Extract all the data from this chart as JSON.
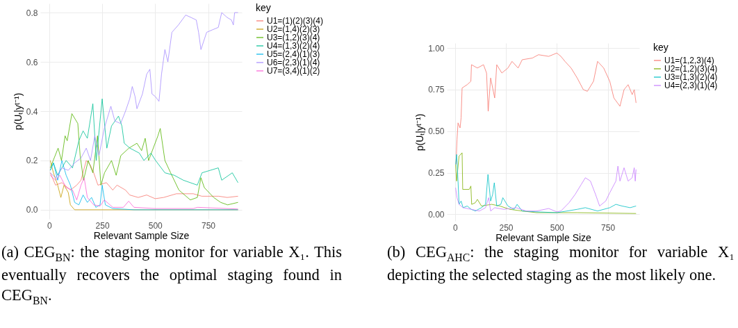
{
  "chart_data": [
    {
      "type": "line",
      "xlabel": "Relevant Sample Size",
      "ylabel": "p(Uₜ|yᵗ⁻¹)",
      "legend_title": "key",
      "legend": "right",
      "grid": true,
      "xlim": [
        -42,
        909
      ],
      "ylim": [
        -0.037,
        0.837
      ],
      "xticks": [
        0,
        250,
        500,
        750
      ],
      "yticks": [
        {
          "value": 0,
          "label": "0.0"
        },
        {
          "value": 0.2,
          "label": "0.2"
        },
        {
          "value": 0.4,
          "label": "0.4"
        },
        {
          "value": 0.6,
          "label": "0.6"
        },
        {
          "value": 0.8,
          "label": "0.8"
        }
      ],
      "annotations": [
        "(a) CEG$_{BN}$: the staging monitor for variable X₁. This eventually recovers the optimal staging found in CEG$_{BN}$."
      ],
      "series": [
        {
          "name": "U1=(1)(2)(3)(4)",
          "color": "#f8766d",
          "x": [
            5,
            30,
            60,
            100,
            130,
            150,
            175,
            195,
            210,
            230,
            270,
            300,
            320,
            360,
            380,
            420,
            460,
            500,
            540,
            600,
            680,
            720,
            800,
            840,
            891
          ],
          "values": [
            0.15,
            0.1,
            0.11,
            0.08,
            0.1,
            0.12,
            0.2,
            0.18,
            0.15,
            0.1,
            0.11,
            0.08,
            0.1,
            0.08,
            0.06,
            0.05,
            0.06,
            0.045,
            0.05,
            0.065,
            0.065,
            0.055,
            0.055,
            0.05,
            0.055
          ]
        },
        {
          "name": "U2=(1,4)(2)(3)",
          "color": "#c49a00",
          "x": [
            5,
            20,
            40,
            55,
            70,
            90,
            100,
            120,
            891
          ],
          "values": [
            0.2,
            0.15,
            0.1,
            0.05,
            0.1,
            0.07,
            0.02,
            0,
            0
          ]
        },
        {
          "name": "U3=(1,2)(3)(4)",
          "color": "#53b400",
          "x": [
            5,
            42,
            58,
            75,
            85,
            107,
            135,
            146,
            162,
            184,
            206,
            228,
            244,
            261,
            294,
            316,
            338,
            376,
            414,
            436,
            453,
            469,
            513,
            524,
            546,
            573,
            612,
            666,
            699,
            716,
            732,
            776,
            809,
            842,
            891
          ],
          "values": [
            0.17,
            0.25,
            0.2,
            0.3,
            0.28,
            0.39,
            0.35,
            0.22,
            0.12,
            0.2,
            0.15,
            0.3,
            0.1,
            0.15,
            0.2,
            0.14,
            0.22,
            0.25,
            0.27,
            0.24,
            0.29,
            0.2,
            0.3,
            0.33,
            0.2,
            0.15,
            0.08,
            0.04,
            0.05,
            0.13,
            0.09,
            0.05,
            0.03,
            0.02,
            0.03
          ]
        },
        {
          "name": "U4=(1,3)(2)(4)",
          "color": "#00c094",
          "x": [
            5,
            20,
            40,
            80,
            110,
            140,
            160,
            180,
            206,
            222,
            250,
            272,
            294,
            327,
            343,
            354,
            381,
            425,
            447,
            480,
            502,
            546,
            590,
            633,
            699,
            721,
            798,
            814,
            864,
            891
          ],
          "values": [
            0.16,
            0.19,
            0.14,
            0.2,
            0.17,
            0.28,
            0.32,
            0.29,
            0.43,
            0.2,
            0.45,
            0.25,
            0.34,
            0.38,
            0.34,
            0.27,
            0.25,
            0.23,
            0.2,
            0.23,
            0.2,
            0.15,
            0.14,
            0.12,
            0.1,
            0.15,
            0.17,
            0.12,
            0.15,
            0.11
          ]
        },
        {
          "name": "U5=(2,4)(1)(3)",
          "color": "#00b6eb",
          "x": [
            5,
            20,
            40,
            60,
            80,
            100,
            120,
            140,
            160,
            180,
            200,
            220,
            240,
            250,
            265,
            300,
            400,
            891
          ],
          "values": [
            0.16,
            0.19,
            0.12,
            0.2,
            0.14,
            0.1,
            0.03,
            0.02,
            0.06,
            0.03,
            0.05,
            0.01,
            0.02,
            0.1,
            0.02,
            0.005,
            0,
            0
          ]
        },
        {
          "name": "U6=(2,3)(1)(4)",
          "color": "#a58aff",
          "x": [
            5,
            30,
            60,
            90,
            120,
            150,
            175,
            195,
            215,
            235,
            260,
            291,
            310,
            337,
            360,
            380,
            392,
            405,
            414,
            440,
            460,
            475,
            485,
            500,
            518,
            530,
            546,
            560,
            579,
            610,
            644,
            670,
            694,
            705,
            716,
            743,
            770,
            798,
            814,
            840,
            860,
            869,
            875,
            891
          ],
          "values": [
            0.15,
            0.13,
            0.17,
            0.16,
            0.19,
            0.21,
            0.25,
            0.2,
            0.3,
            0.22,
            0.33,
            0.42,
            0.36,
            0.35,
            0.4,
            0.45,
            0.5,
            0.46,
            0.41,
            0.47,
            0.55,
            0.57,
            0.47,
            0.46,
            0.44,
            0.55,
            0.65,
            0.6,
            0.72,
            0.75,
            0.79,
            0.78,
            0.77,
            0.72,
            0.65,
            0.72,
            0.73,
            0.74,
            0.8,
            0.78,
            0.77,
            0.75,
            0.8,
            0.8
          ]
        },
        {
          "name": "U7=(3,4)(1)(2)",
          "color": "#fb61d7",
          "x": [
            5,
            30,
            50,
            80,
            110,
            130,
            150,
            165,
            180,
            210,
            240,
            260,
            300,
            350,
            375,
            400,
            500,
            680,
            700,
            891
          ],
          "values": [
            0.14,
            0.12,
            0.14,
            0.09,
            0.08,
            0.04,
            0.1,
            0.13,
            0.05,
            0.02,
            0.015,
            0.04,
            0.01,
            0.01,
            0.035,
            0.01,
            0.005,
            0.005,
            0.01,
            0.003
          ]
        }
      ]
    },
    {
      "type": "line",
      "xlabel": "Relevant Sample Size",
      "ylabel": "p(Uₜ|yᵗ⁻¹)",
      "legend_title": "key",
      "legend": "right",
      "grid": true,
      "xlim": [
        -40,
        905
      ],
      "ylim": [
        -0.04,
        1.03
      ],
      "xticks": [
        0,
        250,
        500,
        750
      ],
      "yticks": [
        {
          "value": 0,
          "label": "0.00"
        },
        {
          "value": 0.25,
          "label": "0.25"
        },
        {
          "value": 0.5,
          "label": "0.50"
        },
        {
          "value": 0.75,
          "label": "0.75"
        },
        {
          "value": 1,
          "label": "1.00"
        }
      ],
      "annotations": [
        "(b) CEG$_{AHC}$: the staging monitor for variable X₁ depicting the selected staging as the most likely one."
      ],
      "series": [
        {
          "name": "U1=(1,2,3)(4)",
          "color": "#f8766d",
          "x": [
            5,
            10,
            15,
            25,
            30,
            35,
            60,
            78,
            81,
            110,
            140,
            155,
            163,
            175,
            195,
            205,
            230,
            260,
            280,
            310,
            330,
            380,
            410,
            460,
            500,
            520,
            540,
            570,
            600,
            630,
            650,
            680,
            700,
            730,
            760,
            780,
            810,
            830,
            850,
            870,
            880,
            889
          ],
          "values": [
            0.3,
            0.45,
            0.55,
            0.52,
            0.58,
            0.76,
            0.78,
            0.8,
            0.9,
            0.88,
            0.9,
            0.85,
            0.62,
            0.82,
            0.7,
            0.9,
            0.85,
            0.88,
            0.92,
            0.88,
            0.93,
            0.94,
            0.96,
            0.95,
            0.97,
            0.95,
            0.92,
            0.88,
            0.82,
            0.75,
            0.74,
            0.8,
            0.92,
            0.88,
            0.8,
            0.7,
            0.65,
            0.75,
            0.78,
            0.72,
            0.75,
            0.67
          ]
        },
        {
          "name": "U2=(1,2)(3)(4)",
          "color": "#7cae00",
          "x": [
            3,
            8,
            20,
            35,
            38,
            70,
            78,
            82,
            100,
            110,
            130,
            180,
            220,
            270,
            330,
            400,
            600,
            889
          ],
          "values": [
            0.3,
            0.2,
            0.35,
            0.37,
            0.15,
            0.15,
            0.17,
            0.06,
            0.07,
            0.09,
            0.05,
            0.06,
            0.05,
            0.03,
            0.02,
            0.01,
            0.01,
            0.005
          ]
        },
        {
          "name": "U3=(1,3)(2)(4)",
          "color": "#00bfc4",
          "x": [
            3,
            8,
            15,
            20,
            30,
            40,
            60,
            80,
            100,
            130,
            150,
            162,
            175,
            185,
            193,
            205,
            225,
            235,
            260,
            290,
            305,
            330,
            400,
            500,
            600,
            640,
            700,
            760,
            790,
            820,
            860,
            889
          ],
          "values": [
            0.3,
            0.36,
            0.2,
            0.06,
            0.08,
            0.04,
            0.05,
            0.03,
            0.02,
            0.04,
            0.06,
            0.24,
            0.08,
            0.12,
            0.19,
            0.05,
            0.06,
            0.1,
            0.05,
            0.03,
            0.06,
            0.02,
            0.015,
            0.01,
            0.03,
            0.04,
            0.02,
            0.04,
            0.06,
            0.05,
            0.04,
            0.05
          ]
        },
        {
          "name": "U4=(2,3)(1)(4)",
          "color": "#c77cff",
          "x": [
            3,
            10,
            20,
            40,
            80,
            120,
            150,
            165,
            175,
            195,
            240,
            300,
            350,
            400,
            460,
            500,
            520,
            560,
            590,
            620,
            640,
            665,
            690,
            710,
            740,
            760,
            790,
            800,
            810,
            830,
            850,
            870,
            880,
            885,
            889
          ],
          "values": [
            0.16,
            0.1,
            0.06,
            0.04,
            0.03,
            0.02,
            0.04,
            0.1,
            0.02,
            0.04,
            0.03,
            0.04,
            0.02,
            0.02,
            0.035,
            0.015,
            0.02,
            0.07,
            0.12,
            0.18,
            0.22,
            0.2,
            0.12,
            0.05,
            0.08,
            0.13,
            0.2,
            0.29,
            0.2,
            0.28,
            0.2,
            0.22,
            0.28,
            0.2,
            0.27
          ]
        }
      ]
    }
  ]
}
